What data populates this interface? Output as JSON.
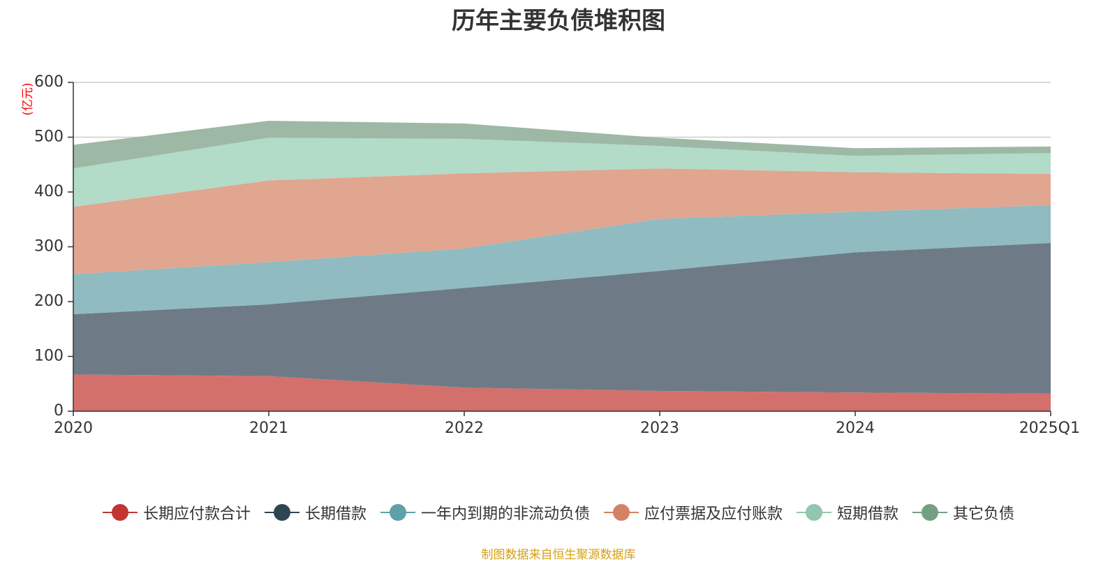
{
  "chart_data": {
    "type": "area",
    "stacked": true,
    "title": "历年主要负债堆积图",
    "ylabel": "(亿元)",
    "xlabel": "",
    "categories": [
      "2020",
      "2021",
      "2022",
      "2023",
      "2024",
      "2025Q1"
    ],
    "ylim": [
      0,
      600
    ],
    "yticks": [
      0,
      100,
      200,
      300,
      400,
      500,
      600
    ],
    "grid": true,
    "legend_position": "bottom",
    "series": [
      {
        "name": "长期应付款合计",
        "color": "#c23531",
        "fill": "#d4706b",
        "values": [
          67,
          64,
          43,
          37,
          34,
          32
        ]
      },
      {
        "name": "长期借款",
        "color": "#2f4554",
        "fill": "#6e7b87",
        "values": [
          110,
          131,
          182,
          219,
          256,
          275
        ]
      },
      {
        "name": "一年内到期的非流动负债",
        "color": "#61a0a8",
        "fill": "#90bbc1",
        "values": [
          73,
          77,
          72,
          95,
          74,
          69
        ]
      },
      {
        "name": "应付票据及应付账款",
        "color": "#d48265",
        "fill": "#e0a690",
        "values": [
          123,
          149,
          137,
          92,
          72,
          57
        ]
      },
      {
        "name": "短期借款",
        "color": "#91c7ae",
        "fill": "#b2dbc8",
        "values": [
          70,
          78,
          63,
          41,
          30,
          38
        ]
      },
      {
        "name": "其它负债",
        "color": "#749f83",
        "fill": "#9db8a5",
        "values": [
          43,
          31,
          28,
          15,
          14,
          12
        ]
      }
    ]
  },
  "source": "制图数据来自恒生聚源数据库"
}
